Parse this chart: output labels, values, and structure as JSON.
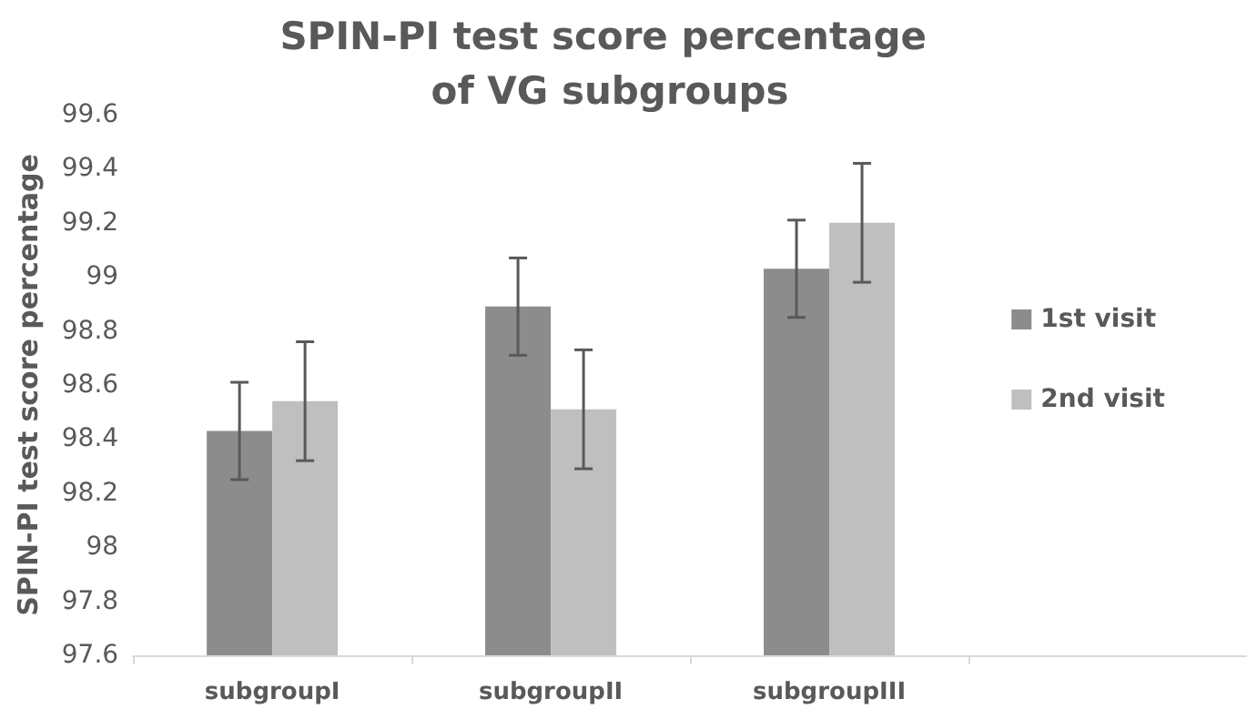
{
  "chart_data": {
    "type": "bar",
    "title": "SPIN-PI test score percentage of VG subgroups",
    "ylabel": "SPIN-PI test score percentage",
    "categories": [
      "subgroupI",
      "subgroupII",
      "subgroupIII",
      null
    ],
    "series": [
      {
        "name": "1st visit",
        "color": "#8c8c8c",
        "values": [
          98.43,
          98.89,
          99.03,
          null
        ],
        "errors": [
          0.18,
          0.18,
          0.18,
          null
        ]
      },
      {
        "name": "2nd visit",
        "color": "#bfbfbf",
        "values": [
          98.54,
          98.51,
          99.2,
          null
        ],
        "errors": [
          0.22,
          0.22,
          0.22,
          null
        ]
      }
    ],
    "ylim": [
      97.6,
      99.6
    ],
    "yticks": [
      97.6,
      97.8,
      98,
      98.2,
      98.4,
      98.6,
      98.8,
      99,
      99.2,
      99.4,
      99.6
    ],
    "grid": false,
    "legend": "right"
  }
}
